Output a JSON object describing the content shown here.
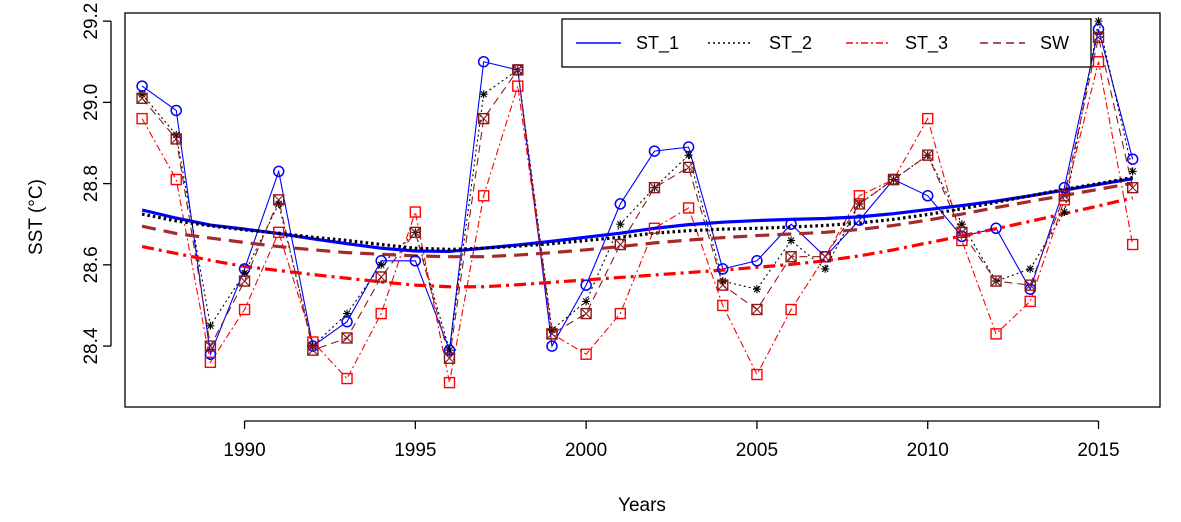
{
  "chart_data": {
    "type": "line",
    "title": "",
    "xlabel": "Years",
    "ylabel": "SST (°C)",
    "xlim": [
      1986.5,
      2016.8
    ],
    "ylim": [
      28.25,
      29.22
    ],
    "x_ticks": [
      1990,
      1995,
      2000,
      2005,
      2010,
      2015
    ],
    "y_ticks": [
      28.4,
      28.6,
      28.8,
      29.0,
      29.2
    ],
    "x_tick_labels": [
      "1990",
      "1995",
      "2000",
      "2005",
      "2010",
      "2015"
    ],
    "y_tick_labels": [
      "28.4",
      "28.6",
      "28.8",
      "29.0",
      "29.2"
    ],
    "grid": false,
    "legend_position": "top-right",
    "x": [
      1987,
      1988,
      1989,
      1990,
      1991,
      1992,
      1993,
      1994,
      1995,
      1996,
      1997,
      1998,
      1999,
      2000,
      2001,
      2002,
      2003,
      2004,
      2005,
      2006,
      2007,
      2008,
      2009,
      2010,
      2011,
      2012,
      2013,
      2014,
      2015,
      2016
    ],
    "series": [
      {
        "name": "ST_1",
        "color": "#0000ff",
        "line_style": "solid",
        "marker": "circle",
        "values": [
          29.04,
          28.98,
          28.38,
          28.59,
          28.83,
          28.4,
          28.46,
          28.61,
          28.61,
          28.39,
          29.1,
          29.08,
          28.4,
          28.55,
          28.75,
          28.88,
          28.89,
          28.59,
          28.61,
          28.7,
          28.62,
          28.71,
          28.81,
          28.77,
          28.67,
          28.69,
          28.54,
          28.79,
          29.18,
          28.86
        ],
        "trend": [
          28.735,
          28.715,
          28.698,
          28.688,
          28.677,
          28.664,
          28.652,
          28.641,
          28.634,
          28.633,
          28.641,
          28.649,
          28.658,
          28.668,
          28.678,
          28.69,
          28.699,
          28.705,
          28.709,
          28.712,
          28.714,
          28.718,
          28.726,
          28.736,
          28.746,
          28.757,
          28.77,
          28.784,
          28.798,
          28.812
        ],
        "trend_color": "#0000ff"
      },
      {
        "name": "ST_2",
        "color": "#000000",
        "line_style": "dotted",
        "marker": "star",
        "values": [
          29.02,
          28.92,
          28.45,
          28.58,
          28.75,
          28.4,
          28.48,
          28.6,
          28.68,
          28.39,
          29.02,
          29.08,
          28.44,
          28.51,
          28.7,
          28.79,
          28.87,
          28.56,
          28.54,
          28.66,
          28.59,
          28.75,
          28.81,
          28.87,
          28.7,
          28.56,
          28.59,
          28.73,
          29.2,
          28.83
        ],
        "trend": [
          28.725,
          28.708,
          28.696,
          28.686,
          28.678,
          28.668,
          28.66,
          28.65,
          28.641,
          28.638,
          28.641,
          28.646,
          28.652,
          28.66,
          28.668,
          28.678,
          28.684,
          28.688,
          28.69,
          28.693,
          28.697,
          28.703,
          28.712,
          28.724,
          28.738,
          28.754,
          28.77,
          28.786,
          28.8,
          28.815
        ],
        "trend_color": "#000000"
      },
      {
        "name": "ST_3",
        "color": "#ff0000",
        "line_style": "dashdot",
        "marker": "square",
        "values": [
          28.96,
          28.81,
          28.36,
          28.49,
          28.68,
          28.41,
          28.32,
          28.48,
          28.73,
          28.31,
          28.77,
          29.04,
          28.43,
          28.38,
          28.48,
          28.69,
          28.74,
          28.5,
          28.33,
          28.49,
          28.62,
          28.77,
          28.81,
          28.96,
          28.66,
          28.43,
          28.51,
          28.76,
          29.1,
          28.65
        ],
        "trend": [
          28.645,
          28.628,
          28.611,
          28.596,
          28.586,
          28.576,
          28.567,
          28.558,
          28.55,
          28.546,
          28.546,
          28.551,
          28.557,
          28.563,
          28.569,
          28.575,
          28.581,
          28.587,
          28.594,
          28.601,
          28.61,
          28.622,
          28.637,
          28.654,
          28.671,
          28.689,
          28.707,
          28.726,
          28.745,
          28.765
        ],
        "trend_color": "#ff0000"
      },
      {
        "name": "SW",
        "color": "#8b1a1a",
        "line_style": "dashed",
        "marker": "boxx",
        "values": [
          29.01,
          28.91,
          28.4,
          28.56,
          28.76,
          28.39,
          28.42,
          28.57,
          28.68,
          28.37,
          28.96,
          29.08,
          28.43,
          28.48,
          28.65,
          28.79,
          28.84,
          28.55,
          28.49,
          28.62,
          28.62,
          28.75,
          28.81,
          28.87,
          28.68,
          28.56,
          28.55,
          28.77,
          29.16,
          28.79
        ],
        "trend": [
          28.695,
          28.677,
          28.666,
          28.655,
          28.645,
          28.637,
          28.63,
          28.626,
          28.622,
          28.62,
          28.62,
          28.624,
          28.63,
          28.637,
          28.645,
          28.654,
          28.661,
          28.667,
          28.672,
          28.676,
          28.68,
          28.687,
          28.697,
          28.71,
          28.725,
          28.741,
          28.756,
          28.771,
          28.786,
          28.801
        ],
        "trend_color": "#a52a2a"
      }
    ]
  }
}
